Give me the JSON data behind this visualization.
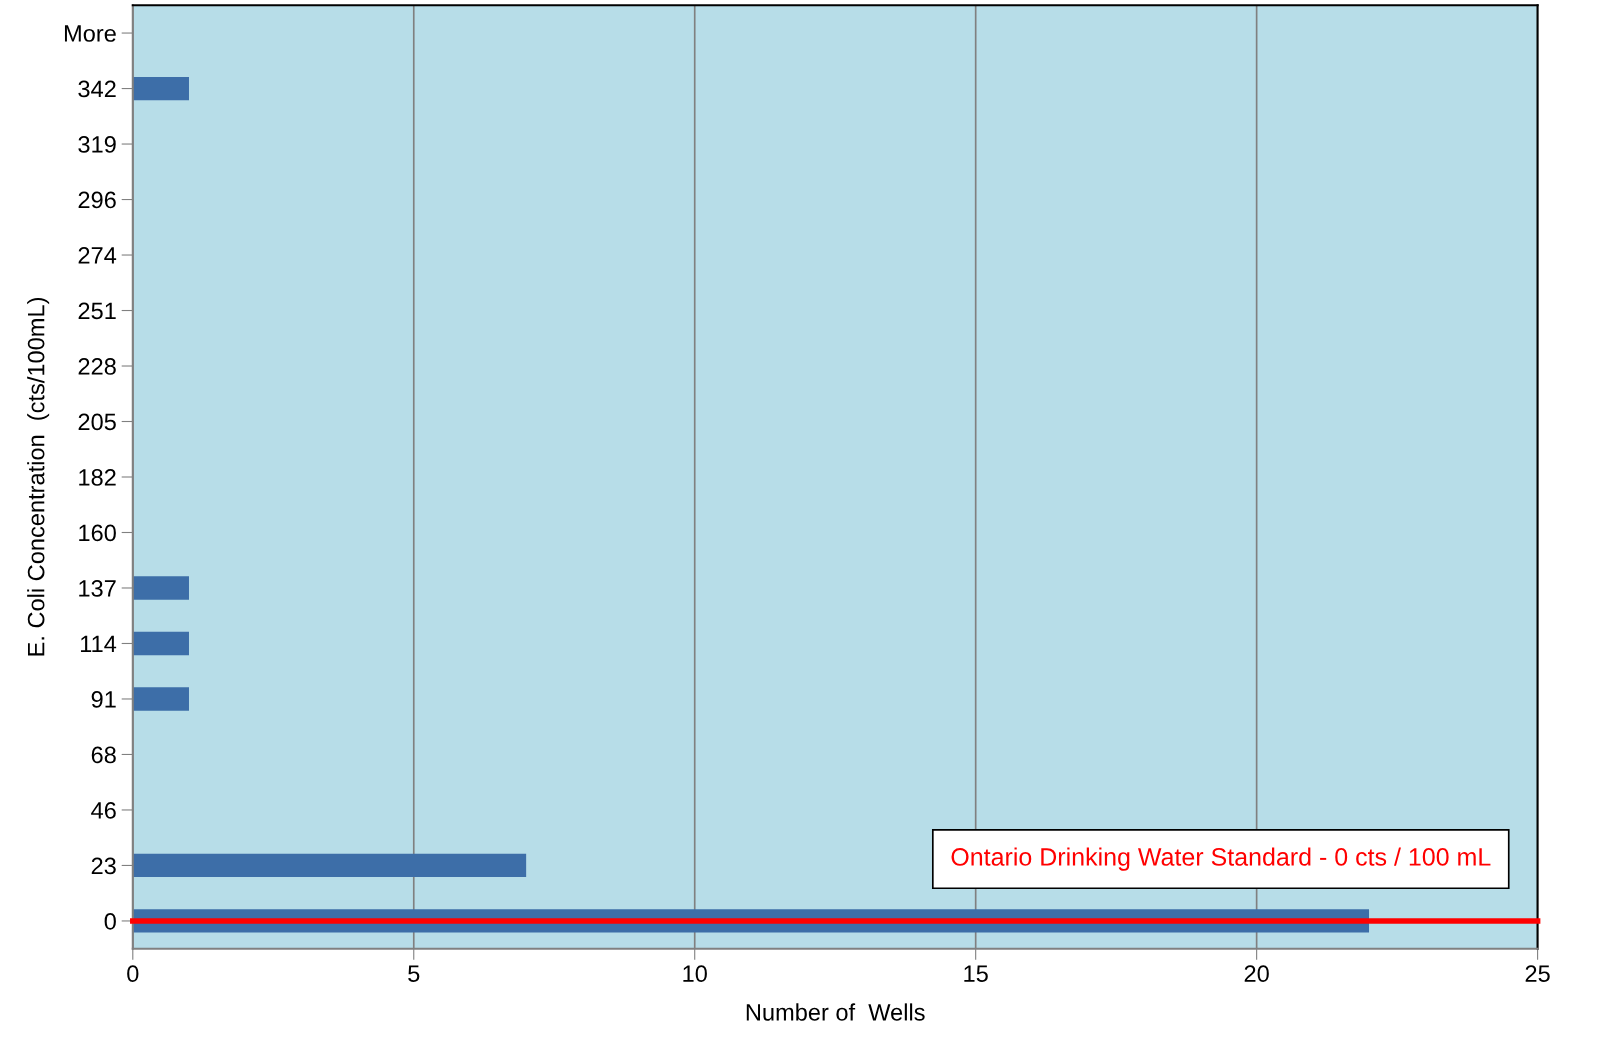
{
  "chart_data": {
    "type": "bar",
    "orientation": "horizontal",
    "xlabel": "Number of  Wells",
    "ylabel": "E. Coli Concentration  (cts/100mL)",
    "categories": [
      "More",
      "342",
      "319",
      "296",
      "274",
      "251",
      "228",
      "205",
      "182",
      "160",
      "137",
      "114",
      "91",
      "68",
      "46",
      "23",
      "0"
    ],
    "values": [
      0,
      1,
      0,
      0,
      0,
      0,
      0,
      0,
      0,
      0,
      1,
      1,
      1,
      0,
      0,
      7,
      22
    ],
    "color": "#3d6ea8",
    "xlim": [
      0,
      25
    ],
    "xticks": [
      0,
      5,
      10,
      15,
      20,
      25
    ],
    "grid": "x",
    "ref_lines": [
      {
        "axis": "y",
        "value": "0",
        "label": "Ontario Drinking Water Standard - 0 cts / 100 mL",
        "color": "#ff0000"
      }
    ]
  }
}
